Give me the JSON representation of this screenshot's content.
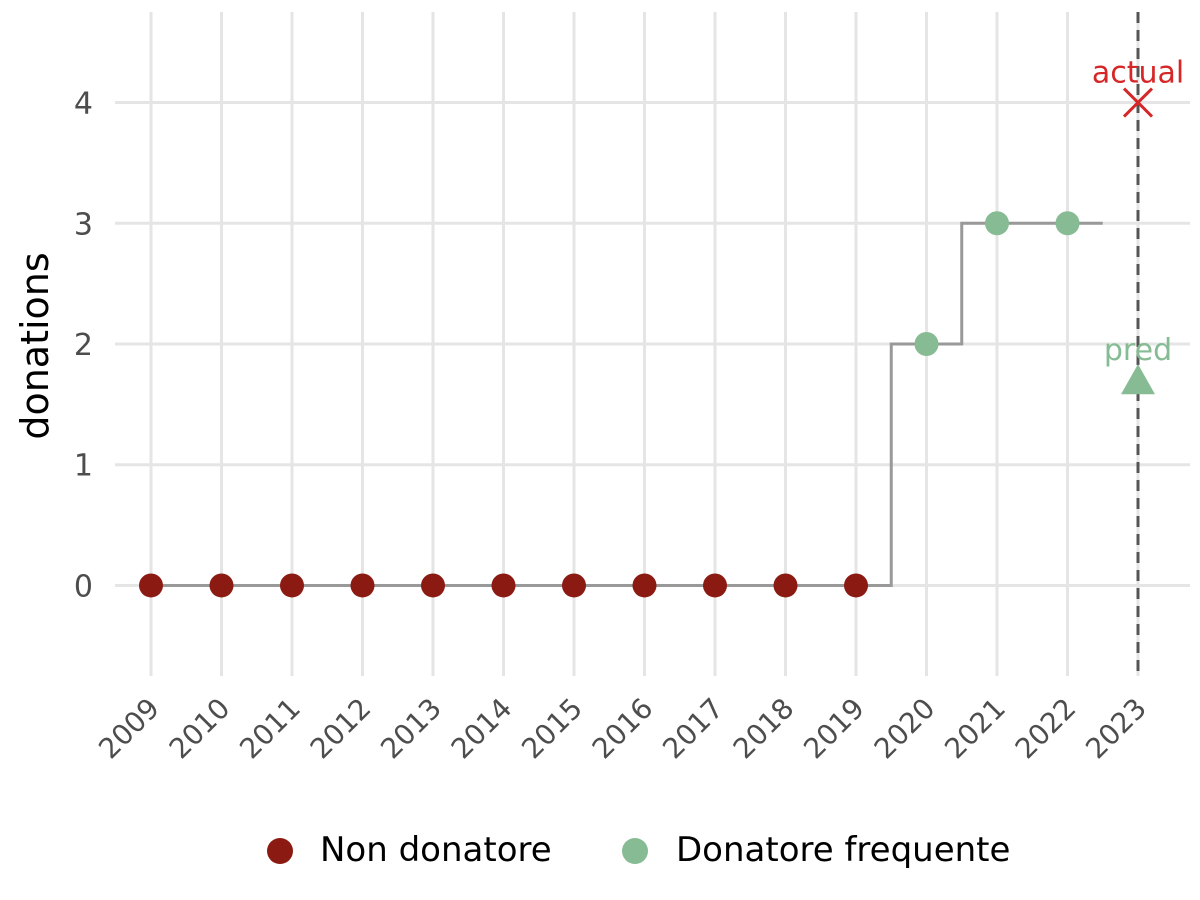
{
  "chart_data": {
    "type": "line",
    "title": "",
    "xlabel": "",
    "ylabel": "donations",
    "x": [
      "2009",
      "2010",
      "2011",
      "2012",
      "2013",
      "2014",
      "2015",
      "2016",
      "2017",
      "2018",
      "2019",
      "2020",
      "2021",
      "2022",
      "2023"
    ],
    "ylim": [
      -0.75,
      4.75
    ],
    "yticks": [
      0,
      1,
      2,
      3,
      4
    ],
    "grid": true,
    "legend_position": "bottom",
    "step_line": {
      "color": "#999999",
      "x": [
        "2009",
        "2010",
        "2011",
        "2012",
        "2013",
        "2014",
        "2015",
        "2016",
        "2017",
        "2018",
        "2019",
        "2020",
        "2021",
        "2022"
      ],
      "values": [
        0,
        0,
        0,
        0,
        0,
        0,
        0,
        0,
        0,
        0,
        0,
        2,
        3,
        3
      ]
    },
    "series": [
      {
        "name": "Non donatore",
        "color": "#8b1a12",
        "x": [
          "2009",
          "2010",
          "2011",
          "2012",
          "2013",
          "2014",
          "2015",
          "2016",
          "2017",
          "2018",
          "2019"
        ],
        "values": [
          0,
          0,
          0,
          0,
          0,
          0,
          0,
          0,
          0,
          0,
          0
        ]
      },
      {
        "name": "Donatore frequente",
        "color": "#86bb94",
        "x": [
          "2020",
          "2021",
          "2022"
        ],
        "values": [
          2,
          3,
          3
        ]
      }
    ],
    "reference_line": {
      "x": "2023",
      "style": "dashed",
      "color": "#555555"
    },
    "annotations": [
      {
        "label": "actual",
        "x": "2023",
        "y": 4.0,
        "marker": "x-icon",
        "color": "#d62728"
      },
      {
        "label": "pred",
        "x": "2023",
        "y": 1.7,
        "marker": "triangle-icon",
        "color": "#86bb94"
      }
    ]
  }
}
